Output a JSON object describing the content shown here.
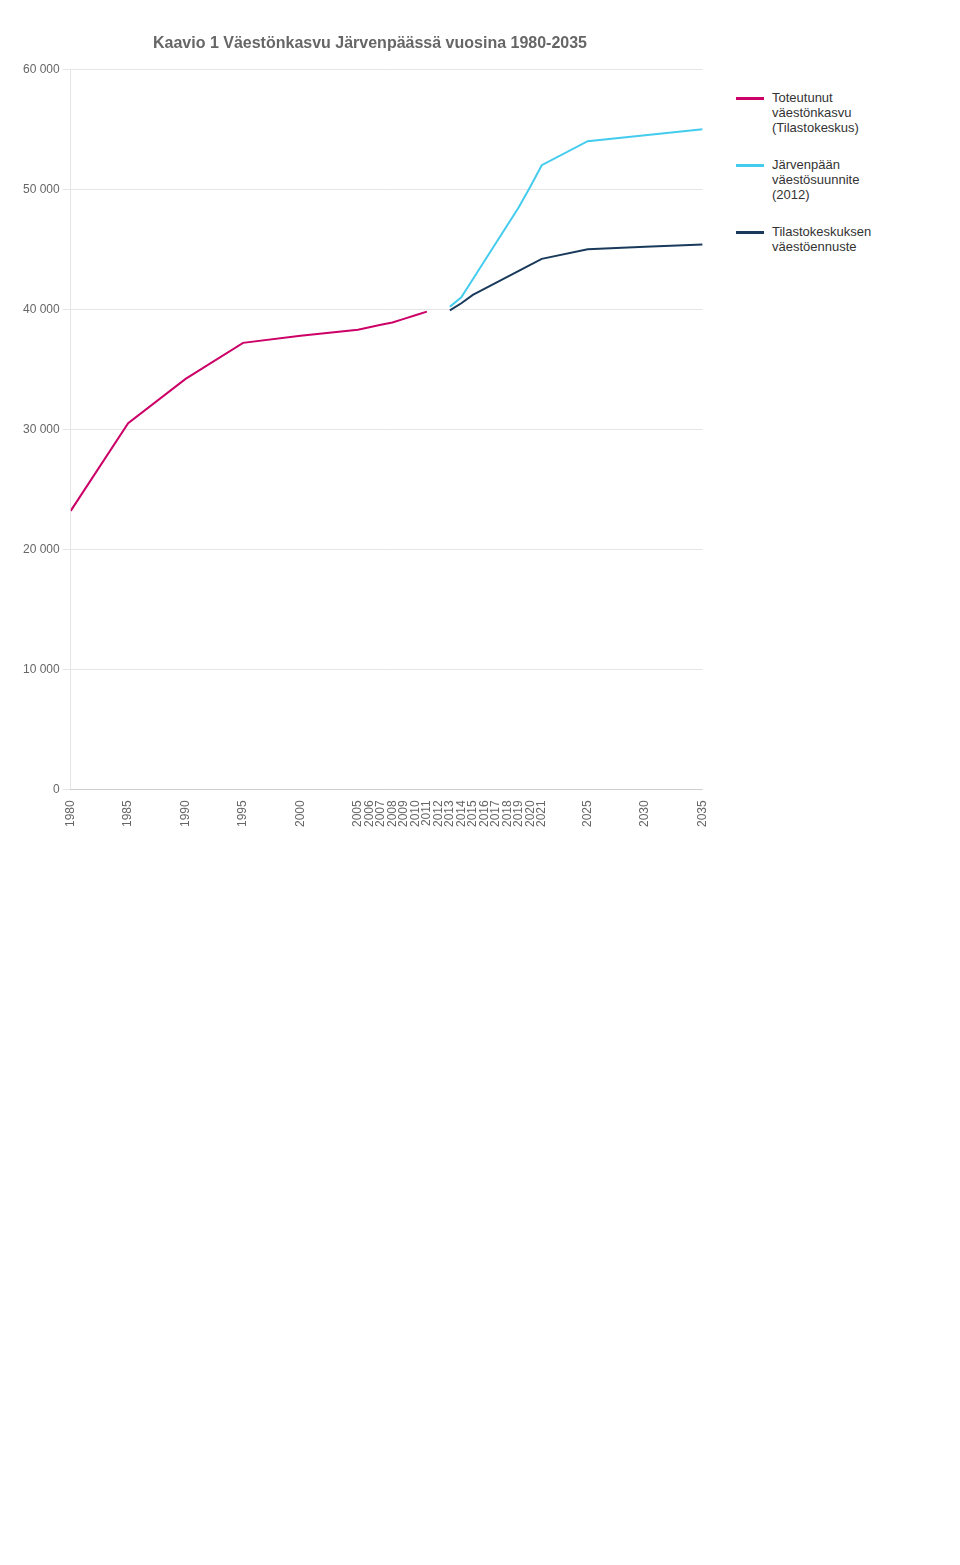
{
  "chart_data": {
    "type": "line",
    "title": "Kaavio 1 Väestönkasvu Järvenpäässä vuosina 1980-2035",
    "xlim": [
      1980,
      2035
    ],
    "xticks": [
      1980,
      1985,
      1990,
      1995,
      2000,
      2005,
      2006,
      2007,
      2008,
      2009,
      2010,
      2011,
      2012,
      2013,
      2014,
      2015,
      2016,
      2017,
      2018,
      2019,
      2020,
      2021,
      2025,
      2030,
      2035
    ],
    "ylim": [
      0,
      60000
    ],
    "yticks": [
      0,
      {
        "value": 10000,
        "label": "10 000"
      },
      {
        "value": 20000,
        "label": "20 000"
      },
      {
        "value": 30000,
        "label": "30 000"
      },
      {
        "value": 40000,
        "label": "40 000"
      },
      {
        "value": 50000,
        "label": "50 000"
      },
      {
        "value": 60000,
        "label": "60 000"
      }
    ],
    "grid": "y",
    "legend": "right",
    "series": [
      {
        "name": "Toteutunut\nväestönkasvu\n(Tilastokeskus)",
        "color": "#cc0066",
        "x": [
          1980,
          1985,
          1990,
          1995,
          2000,
          2005,
          2006,
          2007,
          2008,
          2009,
          2010,
          2011
        ],
        "values": [
          23200,
          30500,
          34200,
          37200,
          37800,
          38300,
          38500,
          38700,
          38900,
          39200,
          39500,
          39800
        ]
      },
      {
        "name": "Järvenpään\nväestösuunnite\n(2012)",
        "color": "#44ccee",
        "x": [
          2013,
          2014,
          2015,
          2016,
          2017,
          2018,
          2019,
          2020,
          2021,
          2025,
          2030,
          2035
        ],
        "values": [
          40200,
          41000,
          42500,
          44000,
          45500,
          47000,
          48500,
          50200,
          52000,
          54000,
          54500,
          55000
        ]
      },
      {
        "name": "Tilastokeskuksen\nväestöennuste",
        "color": "#1a3a5c",
        "x": [
          2013,
          2014,
          2015,
          2016,
          2017,
          2018,
          2019,
          2020,
          2021,
          2025,
          2030,
          2035
        ],
        "values": [
          39900,
          40500,
          41200,
          41700,
          42200,
          42700,
          43200,
          43700,
          44200,
          45000,
          45200,
          45400
        ]
      }
    ]
  }
}
